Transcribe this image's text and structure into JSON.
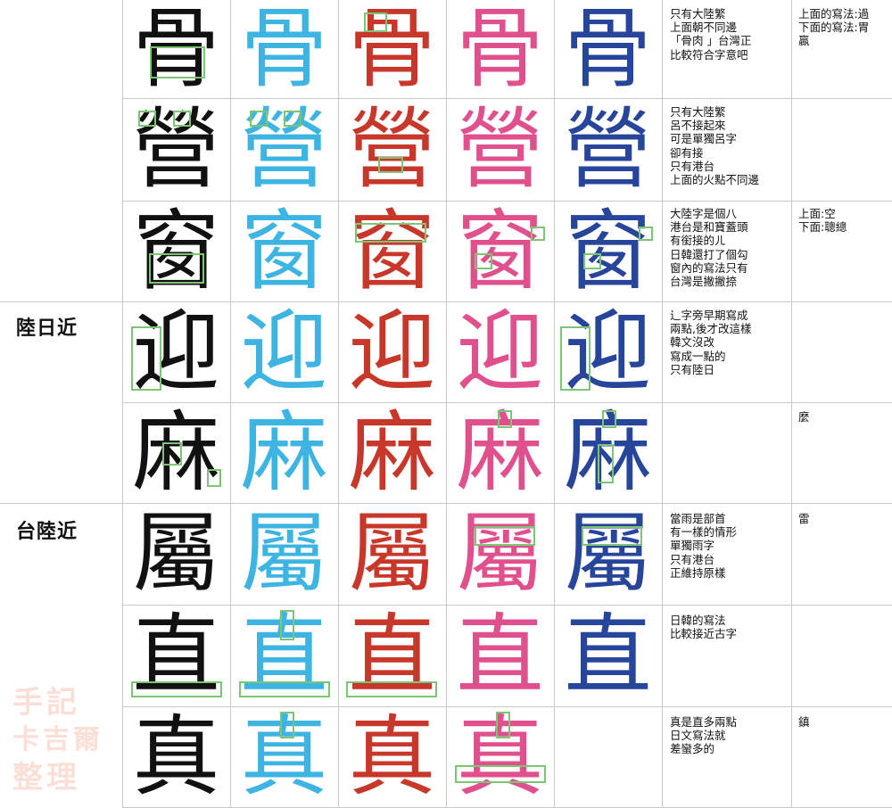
{
  "section_labels": {
    "mainland_japan_close": "陸日近",
    "taiwan_mainland_close": "台陸近"
  },
  "rows": [
    {
      "glyphs": [
        "骨",
        "骨",
        "骨",
        "骨",
        "骨"
      ],
      "note": "只有大陸繁\n上面朝不同邊\n「骨肉 」台灣正\n比較符合字意吧",
      "note2": "上面的寫法:過\n下面的寫法:胃\n贏"
    },
    {
      "glyphs": [
        "營",
        "營",
        "營",
        "營",
        "營"
      ],
      "note": "只有大陸繁\n呂不接起來\n可是單獨呂字\n卻有接\n只有港台\n上面的火點不同邊",
      "note2": ""
    },
    {
      "glyphs": [
        "窗",
        "窗",
        "窗",
        "窗",
        "窗"
      ],
      "note": "大陸字是個八\n港台是和寶蓋頭\n有銜接的ㄦ\n日韓還打了個勾\n窗內的寫法只有\n台灣是撇撇捺",
      "note2": "上面:空\n下面:聰總"
    },
    {
      "glyphs": [
        "迎",
        "迎",
        "迎",
        "迎",
        "迎"
      ],
      "note": "辶字旁早期寫成\n兩點,後才改這樣\n韓文沒改\n寫成一點的\n只有陸日",
      "note2": ""
    },
    {
      "glyphs": [
        "麻",
        "麻",
        "麻",
        "麻",
        "麻"
      ],
      "note": "",
      "note2": "麼"
    },
    {
      "glyphs": [
        "屬",
        "屬",
        "屬",
        "屬",
        "屬"
      ],
      "note": "當雨是部首\n有一樣的情形\n單獨雨字\n只有港台\n正維持原樣",
      "note2": "雷"
    },
    {
      "glyphs": [
        "直",
        "直",
        "直",
        "直",
        "直"
      ],
      "note": "日韓的寫法\n比較接近古字",
      "note2": ""
    },
    {
      "glyphs": [
        "真",
        "真",
        "真",
        "真",
        ""
      ],
      "note": "真是直多兩點\n日文寫法就\n差蠻多的",
      "note2": "鎮"
    }
  ],
  "watermark": [
    "手記",
    "卡吉爾",
    "整理"
  ]
}
